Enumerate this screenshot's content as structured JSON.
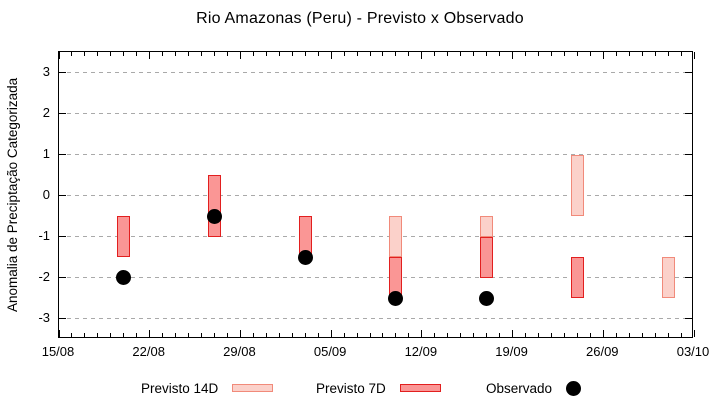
{
  "title": "Rio Amazonas (Peru) - Previsto x Observado",
  "axes": {
    "y_label": "Anomalia de Preciptação Categorizada",
    "y_tick_labels": [
      "3",
      "2",
      "1",
      "0",
      "-1",
      "-2",
      "-3"
    ],
    "x_tick_labels": [
      "15/08",
      "22/08",
      "29/08",
      "05/09",
      "12/09",
      "19/09",
      "26/09",
      "03/10"
    ]
  },
  "legend": {
    "items": [
      {
        "label": "Previsto 14D",
        "marker": "box-light"
      },
      {
        "label": "Previsto 7D",
        "marker": "box-dark"
      },
      {
        "label": "Observado",
        "marker": "dot"
      }
    ]
  },
  "colors": {
    "grid": "#a9a9a9",
    "axis": "#000000",
    "previsto_14d_fill": "#fbd1ca",
    "previsto_14d_border": "#f18a7a",
    "previsto_7d_fill": "#fa9695",
    "previsto_7d_border": "#e21f1f",
    "observado": "#000000"
  },
  "chart_data": {
    "type": "bar",
    "subtype": "floating-range-boxes-with-scatter",
    "title": "Rio Amazonas (Peru) - Previsto x Observado",
    "xlabel": "",
    "ylabel": "Anomalia de Preciptação Categorizada",
    "ylim": [
      -3.5,
      3.5
    ],
    "yticks": [
      3,
      2,
      1,
      0,
      -1,
      -2,
      -3
    ],
    "grid": {
      "horizontal": true,
      "style": "dashed"
    },
    "legend_position": "bottom-center",
    "x_axis": {
      "span_days": 49,
      "minor_tick_interval_days": 1,
      "major_tick_interval_days": 7,
      "tick_labels": [
        "15/08",
        "22/08",
        "29/08",
        "05/09",
        "12/09",
        "19/09",
        "26/09",
        "03/10"
      ],
      "tick_day_offsets": [
        0,
        7,
        14,
        21,
        28,
        35,
        42,
        49
      ]
    },
    "categories": [
      "20/08",
      "27/08",
      "03/09",
      "10/09",
      "17/09",
      "24/09",
      "01/10"
    ],
    "category_day_offsets": [
      5,
      12,
      19,
      26,
      33,
      40,
      47
    ],
    "series": [
      {
        "name": "Previsto 14D",
        "mark": "box",
        "fill": "#fbd1ca",
        "border": "#f18a7a",
        "ranges": [
          null,
          null,
          null,
          [
            -0.5,
            -1.5
          ],
          [
            -0.5,
            -1.0
          ],
          [
            1.0,
            -0.5
          ],
          [
            -1.5,
            -2.5
          ]
        ]
      },
      {
        "name": "Previsto 7D",
        "mark": "box",
        "fill": "#fa9695",
        "border": "#e21f1f",
        "ranges": [
          [
            -0.5,
            -1.5
          ],
          [
            0.5,
            -1.0
          ],
          [
            -0.5,
            -1.5
          ],
          [
            -1.5,
            -2.5
          ],
          [
            -1.0,
            -2.0
          ],
          [
            -1.5,
            -2.5
          ],
          null
        ]
      },
      {
        "name": "Observado",
        "mark": "dot",
        "color": "#000000",
        "values": [
          -2.0,
          -0.5,
          -1.5,
          -2.5,
          -2.5,
          null,
          null
        ]
      }
    ]
  }
}
